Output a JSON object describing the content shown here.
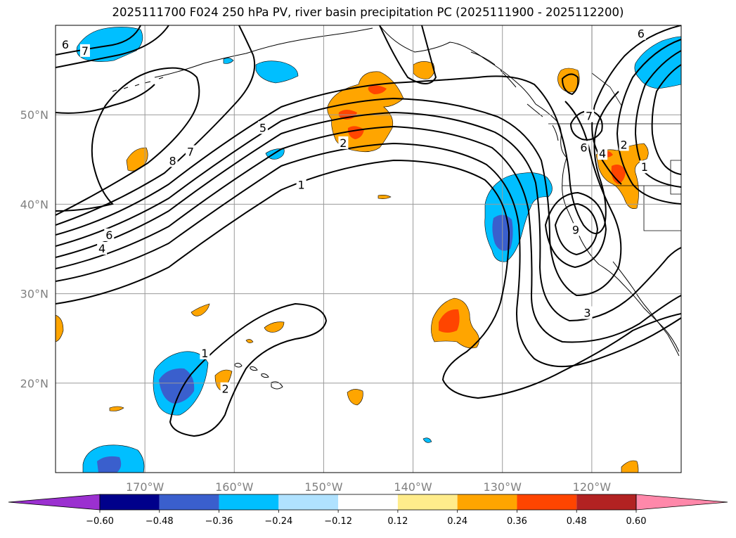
{
  "title": "2025111700 F024 250 hPa PV, river basin precipitation PC (2025111900 - 2025112200)",
  "map": {
    "lon_range": [
      -180,
      -110
    ],
    "lat_range": [
      10,
      60
    ],
    "projection": "equirectangular",
    "gridlines": true,
    "lat_ticks": [
      {
        "value": 20,
        "label": "20°N"
      },
      {
        "value": 30,
        "label": "30°N"
      },
      {
        "value": 40,
        "label": "40°N"
      },
      {
        "value": 50,
        "label": "50°N"
      }
    ],
    "lon_ticks": [
      {
        "value": -170,
        "label": "170°W"
      },
      {
        "value": -160,
        "label": "160°W"
      },
      {
        "value": -150,
        "label": "150°W"
      },
      {
        "value": -140,
        "label": "140°W"
      },
      {
        "value": -130,
        "label": "130°W"
      },
      {
        "value": -120,
        "label": "120°W"
      }
    ],
    "pv_contour_labels": [
      {
        "text": "7",
        "lon": -176.7,
        "lat": 57.1
      },
      {
        "text": "6",
        "lon": -178.9,
        "lat": 57.8
      },
      {
        "text": "6",
        "lon": -114.5,
        "lat": 59.0
      },
      {
        "text": "5",
        "lon": -156.8,
        "lat": 48.5
      },
      {
        "text": "7",
        "lon": -164.9,
        "lat": 45.8
      },
      {
        "text": "8",
        "lon": -166.9,
        "lat": 44.8
      },
      {
        "text": "2",
        "lon": -147.8,
        "lat": 46.8
      },
      {
        "text": "1",
        "lon": -152.5,
        "lat": 42.1
      },
      {
        "text": "6",
        "lon": -174.0,
        "lat": 36.5
      },
      {
        "text": "4",
        "lon": -174.8,
        "lat": 35.0
      },
      {
        "text": "7",
        "lon": -120.3,
        "lat": 49.8
      },
      {
        "text": "6",
        "lon": -120.9,
        "lat": 46.3
      },
      {
        "text": "4",
        "lon": -118.8,
        "lat": 45.6
      },
      {
        "text": "2",
        "lon": -116.4,
        "lat": 46.6
      },
      {
        "text": "1",
        "lon": -114.1,
        "lat": 44.1
      },
      {
        "text": "9",
        "lon": -121.8,
        "lat": 37.1
      },
      {
        "text": "3",
        "lon": -120.5,
        "lat": 27.8
      },
      {
        "text": "1",
        "lon": -163.3,
        "lat": 23.3
      },
      {
        "text": "2",
        "lon": -161.0,
        "lat": 19.3
      }
    ]
  },
  "colorbar": {
    "colors": [
      "#9b30d0",
      "#00008b",
      "#3a5fcd",
      "#00bfff",
      "#b0e2ff",
      "#ffffff",
      "#ffec8b",
      "#ffa500",
      "#ff4500",
      "#b22222",
      "#ff88aa"
    ],
    "tick_labels": [
      "−0.60",
      "−0.48",
      "−0.36",
      "−0.24",
      "−0.12",
      "0.12",
      "0.24",
      "0.36",
      "0.48",
      "0.60"
    ],
    "extend": "both"
  }
}
